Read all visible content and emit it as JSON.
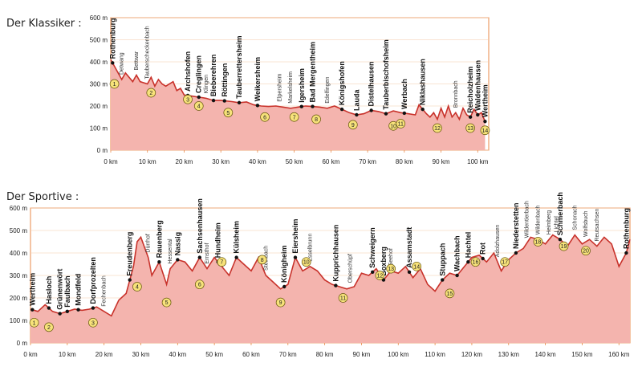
{
  "chart_data": [
    {
      "type": "area",
      "title": "Der Klassiker :",
      "unit_y": "m",
      "unit_x": "km",
      "ylim": [
        0,
        600
      ],
      "xlim": [
        0,
        103
      ],
      "y_ticks": [
        "0 m",
        "100 m",
        "200 m",
        "300 m",
        "400 m",
        "500 m",
        "600 m"
      ],
      "x_ticks": [
        "0 km",
        "10 km",
        "20 km",
        "30 km",
        "40 km",
        "50 km",
        "60 km",
        "70 km",
        "80 km",
        "90 km",
        "100 km"
      ],
      "profile": {
        "x": [
          0,
          1,
          3,
          4,
          6,
          7,
          8,
          10,
          11,
          12,
          13,
          14,
          15,
          17,
          18,
          19,
          20,
          22,
          24,
          26,
          28,
          30,
          33,
          35,
          37,
          39,
          41,
          43,
          45,
          47,
          49,
          51,
          53,
          55,
          57,
          59,
          61,
          63,
          65,
          67,
          69,
          71,
          73,
          75,
          77,
          79,
          81,
          83,
          84,
          86,
          87,
          88,
          89,
          90,
          91,
          92,
          93,
          94,
          95,
          96,
          97,
          98,
          99,
          100,
          101,
          102
        ],
        "y": [
          410,
          380,
          320,
          350,
          310,
          340,
          310,
          300,
          330,
          290,
          320,
          300,
          290,
          310,
          270,
          280,
          250,
          245,
          240,
          235,
          225,
          225,
          220,
          215,
          218,
          205,
          200,
          198,
          200,
          195,
          190,
          195,
          200,
          198,
          195,
          190,
          200,
          185,
          170,
          160,
          165,
          180,
          175,
          165,
          178,
          170,
          165,
          160,
          205,
          165,
          150,
          170,
          140,
          190,
          150,
          200,
          150,
          170,
          140,
          190,
          160,
          150,
          185,
          160,
          170,
          130
        ]
      },
      "towns": [
        {
          "name": "Rothenburg",
          "x": 0.5
        },
        {
          "name": "Archshofen",
          "x": 21
        },
        {
          "name": "Creglingen",
          "x": 24
        },
        {
          "name": "Bieberehren",
          "x": 28
        },
        {
          "name": "Röttingen",
          "x": 31
        },
        {
          "name": "Tauberrettersheim",
          "x": 35
        },
        {
          "name": "Weikersheim",
          "x": 40
        },
        {
          "name": "Igersheim",
          "x": 52
        },
        {
          "name": "Bad Mergentheim",
          "x": 55
        },
        {
          "name": "Königshofen",
          "x": 63
        },
        {
          "name": "Lauda",
          "x": 67
        },
        {
          "name": "Distelhausen",
          "x": 71
        },
        {
          "name": "Tauberbischofsheim",
          "x": 75
        },
        {
          "name": "Werbach",
          "x": 80
        },
        {
          "name": "Niklashausen",
          "x": 85
        },
        {
          "name": "Reicholzheim",
          "x": 98
        },
        {
          "name": "Waldenhausen",
          "x": 100
        },
        {
          "name": "Wertheim",
          "x": 102
        }
      ],
      "villages": [
        {
          "name": "Detwang",
          "x": 3
        },
        {
          "name": "Bettwar",
          "x": 7
        },
        {
          "name": "Tauberscheckenbach",
          "x": 10
        },
        {
          "name": "Klingen",
          "x": 26
        },
        {
          "name": "Elpersheim",
          "x": 46
        },
        {
          "name": "Markelsheim",
          "x": 49
        },
        {
          "name": "Edelfingen",
          "x": 59
        },
        {
          "name": "Bronnbach",
          "x": 94
        }
      ],
      "markers": [
        {
          "label": "1",
          "x": 1,
          "y": 300
        },
        {
          "label": "2",
          "x": 11,
          "y": 260
        },
        {
          "label": "3",
          "x": 21,
          "y": 230
        },
        {
          "label": "4",
          "x": 24,
          "y": 200
        },
        {
          "label": "5",
          "x": 32,
          "y": 170
        },
        {
          "label": "6",
          "x": 42,
          "y": 150
        },
        {
          "label": "7",
          "x": 50,
          "y": 150
        },
        {
          "label": "8",
          "x": 56,
          "y": 140
        },
        {
          "label": "9",
          "x": 66,
          "y": 115
        },
        {
          "label": "10",
          "x": 77,
          "y": 110
        },
        {
          "label": "11",
          "x": 79,
          "y": 120
        },
        {
          "label": "12",
          "x": 89,
          "y": 100
        },
        {
          "label": "13",
          "x": 98,
          "y": 100
        },
        {
          "label": "14",
          "x": 102,
          "y": 90
        }
      ]
    },
    {
      "type": "area",
      "title": "Der Sportive :",
      "unit_y": "m",
      "unit_x": "km",
      "ylim": [
        0,
        600
      ],
      "xlim": [
        0,
        163
      ],
      "y_ticks": [
        "0 m",
        "100 m",
        "200 m",
        "300 m",
        "400 m",
        "500 m",
        "600 m"
      ],
      "x_ticks": [
        "0 km",
        "10 km",
        "20 km",
        "30 km",
        "40 km",
        "50 km",
        "60 km",
        "70 km",
        "80 km",
        "90 km",
        "100 km",
        "110 km",
        "120 km",
        "130 km",
        "140 km",
        "150 km",
        "160 km"
      ],
      "profile": {
        "x": [
          0,
          2,
          4,
          6,
          8,
          10,
          12,
          14,
          16,
          18,
          20,
          22,
          24,
          26,
          28,
          29,
          30,
          32,
          33,
          35,
          37,
          38,
          40,
          42,
          44,
          46,
          48,
          50,
          52,
          54,
          56,
          58,
          60,
          62,
          64,
          66,
          68,
          70,
          72,
          74,
          76,
          78,
          80,
          82,
          84,
          86,
          88,
          90,
          92,
          94,
          96,
          98,
          100,
          102,
          104,
          106,
          108,
          110,
          112,
          114,
          116,
          118,
          120,
          122,
          124,
          126,
          128,
          130,
          132,
          134,
          136,
          138,
          140,
          142,
          144,
          146,
          148,
          150,
          152,
          154,
          156,
          158,
          160,
          162,
          163
        ],
        "y": [
          150,
          140,
          170,
          140,
          130,
          140,
          150,
          145,
          150,
          160,
          140,
          120,
          190,
          220,
          340,
          450,
          470,
          380,
          300,
          360,
          260,
          330,
          370,
          360,
          320,
          380,
          330,
          380,
          340,
          300,
          380,
          350,
          320,
          380,
          300,
          270,
          240,
          260,
          380,
          320,
          340,
          320,
          280,
          260,
          250,
          240,
          250,
          310,
          300,
          330,
          280,
          320,
          310,
          340,
          290,
          330,
          260,
          230,
          280,
          310,
          300,
          340,
          380,
          390,
          360,
          400,
          320,
          370,
          400,
          420,
          470,
          460,
          440,
          480,
          460,
          430,
          480,
          440,
          460,
          430,
          470,
          440,
          340,
          400,
          460
        ]
      },
      "towns": [
        {
          "name": "Wertheim",
          "x": 0.5
        },
        {
          "name": "Hasloch",
          "x": 5
        },
        {
          "name": "Grünenwört",
          "x": 8
        },
        {
          "name": "Faulbach",
          "x": 10
        },
        {
          "name": "Mondfeld",
          "x": 13
        },
        {
          "name": "Dorfprozelten",
          "x": 17
        },
        {
          "name": "Freudenberg",
          "x": 27
        },
        {
          "name": "Rauenberg",
          "x": 35
        },
        {
          "name": "Nassig",
          "x": 40
        },
        {
          "name": "Sachsenhausen",
          "x": 46
        },
        {
          "name": "Hundheim",
          "x": 51
        },
        {
          "name": "Külsheim",
          "x": 56
        },
        {
          "name": "Königheim",
          "x": 69
        },
        {
          "name": "Eiersheim",
          "x": 72
        },
        {
          "name": "Kupprichhausen",
          "x": 83
        },
        {
          "name": "Schweigern",
          "x": 93
        },
        {
          "name": "Boxberg",
          "x": 96
        },
        {
          "name": "Assamstadt",
          "x": 103
        },
        {
          "name": "Stuppach",
          "x": 112
        },
        {
          "name": "Wachbach",
          "x": 116
        },
        {
          "name": "Hachtel",
          "x": 119
        },
        {
          "name": "Rot",
          "x": 123
        },
        {
          "name": "Niederstetten",
          "x": 132
        },
        {
          "name": "Schmerbach",
          "x": 144
        },
        {
          "name": "Rothenburg",
          "x": 162
        }
      ],
      "villages": [
        {
          "name": "Fechenbach",
          "x": 20
        },
        {
          "name": "Dürrhof",
          "x": 32
        },
        {
          "name": "Hessental",
          "x": 38
        },
        {
          "name": "Ernsthof",
          "x": 48
        },
        {
          "name": "Steinbach",
          "x": 64
        },
        {
          "name": "Esselbrunn",
          "x": 76
        },
        {
          "name": "Oberschüpf",
          "x": 87
        },
        {
          "name": "Seehof",
          "x": 98
        },
        {
          "name": "Adolzhausen",
          "x": 127
        },
        {
          "name": "Wildentierbach",
          "x": 135
        },
        {
          "name": "Wildenbach",
          "x": 138
        },
        {
          "name": "Heimberg",
          "x": 141
        },
        {
          "name": "Lichtel",
          "x": 143
        },
        {
          "name": "Schonach",
          "x": 148
        },
        {
          "name": "Wolfsbuch",
          "x": 151
        },
        {
          "name": "Reutsachsen",
          "x": 154
        }
      ],
      "markers": [
        {
          "label": "1",
          "x": 1,
          "y": 90
        },
        {
          "label": "2",
          "x": 5,
          "y": 70
        },
        {
          "label": "3",
          "x": 17,
          "y": 90
        },
        {
          "label": "4",
          "x": 29,
          "y": 250
        },
        {
          "label": "5",
          "x": 37,
          "y": 180
        },
        {
          "label": "6",
          "x": 46,
          "y": 260
        },
        {
          "label": "7",
          "x": 52,
          "y": 360
        },
        {
          "label": "8",
          "x": 63,
          "y": 370
        },
        {
          "label": "9",
          "x": 68,
          "y": 180
        },
        {
          "label": "10",
          "x": 75,
          "y": 360
        },
        {
          "label": "11",
          "x": 85,
          "y": 200
        },
        {
          "label": "12",
          "x": 95,
          "y": 300
        },
        {
          "label": "13",
          "x": 98,
          "y": 330
        },
        {
          "label": "14",
          "x": 105,
          "y": 340
        },
        {
          "label": "15",
          "x": 114,
          "y": 220
        },
        {
          "label": "16",
          "x": 121,
          "y": 360
        },
        {
          "label": "17",
          "x": 129,
          "y": 360
        },
        {
          "label": "18",
          "x": 138,
          "y": 450
        },
        {
          "label": "19",
          "x": 145,
          "y": 430
        },
        {
          "label": "20",
          "x": 151,
          "y": 410
        }
      ]
    }
  ]
}
